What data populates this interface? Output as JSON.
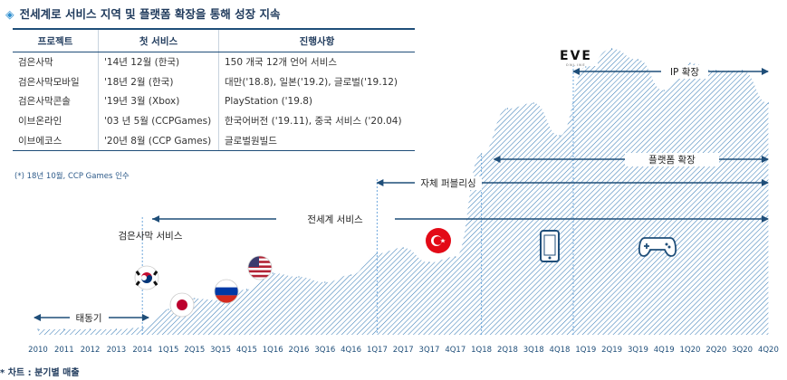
{
  "header": {
    "title": "전세계로 서비스 지역 및 플랫폼 확장을 통해 성장 지속",
    "footnote": "(*) 18년 10월, CCP Games 인수",
    "note": "* 차트 : 분기별 매출"
  },
  "table": {
    "headers": [
      "프로젝트",
      "첫 서비스",
      "진행사항"
    ],
    "rows": [
      [
        "검은사막",
        "'14년 12월 (한국)",
        "150 개국 12개 언어 서비스"
      ],
      [
        "검은사막모바일",
        "'18년 2월 (한국)",
        "대만('18.8), 일본('19.2), 글로벌('19.12)"
      ],
      [
        "검은사막콘솔",
        "'19년 3월 (Xbox)",
        "PlayStation ('19.8)"
      ],
      [
        "이브온라인",
        "'03 년 5월 (CCPGames)",
        "한국어버전 ('19.11), 중국 서비스 ('20.04)"
      ],
      [
        "이브에코스",
        "'20년 8월 (CCP Games)",
        "글로벌원빌드"
      ]
    ]
  },
  "chart_data": {
    "type": "area",
    "title": "",
    "categories": [
      "2010",
      "2011",
      "2012",
      "2013",
      "2014",
      "1Q15",
      "2Q15",
      "3Q15",
      "4Q15",
      "1Q16",
      "2Q16",
      "3Q16",
      "4Q16",
      "1Q17",
      "2Q17",
      "3Q17",
      "4Q17",
      "1Q18",
      "2Q18",
      "3Q18",
      "4Q18",
      "1Q19",
      "2Q19",
      "3Q19",
      "4Q19",
      "1Q20",
      "2Q20",
      "3Q20",
      "4Q20"
    ],
    "values": [
      3,
      3,
      3,
      3,
      4,
      14,
      20,
      19,
      25,
      34,
      32,
      29,
      33,
      45,
      48,
      40,
      43,
      100,
      125,
      128,
      110,
      148,
      158,
      152,
      135,
      150,
      146,
      146,
      128
    ],
    "annotations": {
      "taedongi": "태동기",
      "black_desert_service": "검은사막 서비스",
      "global_service": "전세계 서비스",
      "self_publishing": "자체 퍼블리싱",
      "platform_expansion": "플랫폼 확장",
      "ip_expansion": "IP 확장",
      "eve_logo": "EVE",
      "eve_logo_sub": "ONLINE"
    },
    "markers": {
      "black_desert_service": "2014",
      "self_publishing": "1Q17",
      "platform_expansion": "1Q18",
      "ip_expansion": "4Q18"
    },
    "colors": {
      "area_hatch": "#3d7fb8",
      "axis_label": "#1f4e79",
      "arrow": "#1f4e79",
      "dashed_line": "#6fa8dc"
    }
  }
}
